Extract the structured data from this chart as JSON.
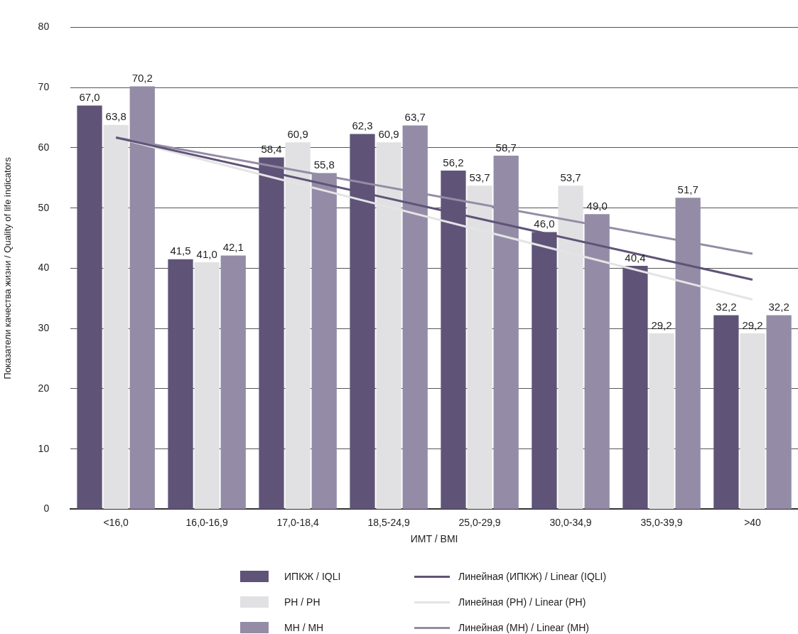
{
  "chart_data": {
    "type": "bar",
    "xlabel": "ИМТ / BMI",
    "ylabel": "Показатели качества жизни / Quality of life indicators",
    "categories": [
      "<16,0",
      "16,0-16,9",
      "17,0-18,4",
      "18,5-24,9",
      "25,0-29,9",
      "30,0-34,9",
      "35,0-39,9",
      ">40"
    ],
    "series": [
      {
        "name": "ИПКЖ / IQLI",
        "color": "#5f5477",
        "values": [
          67.0,
          41.5,
          58.4,
          62.3,
          56.2,
          46.0,
          40.4,
          32.2
        ],
        "value_labels": [
          "67,0",
          "41,5",
          "58,4",
          "62,3",
          "56,2",
          "46,0",
          "40,4",
          "32,2"
        ]
      },
      {
        "name": "PH / PH",
        "color": "#e1e1e3",
        "values": [
          63.8,
          41.0,
          60.9,
          60.9,
          53.7,
          53.7,
          29.2,
          29.2
        ],
        "value_labels": [
          "63,8",
          "41,0",
          "60,9",
          "60,9",
          "53,7",
          "53,7",
          "29,2",
          "29,2"
        ]
      },
      {
        "name": "MH / MH",
        "color": "#948ca6",
        "values": [
          70.2,
          42.1,
          55.8,
          63.7,
          58.7,
          49.0,
          51.7,
          32.2
        ],
        "value_labels": [
          "70,2",
          "42,1",
          "55,8",
          "63,7",
          "58,7",
          "49,0",
          "51,7",
          "32,2"
        ]
      },
      {
        "name": "Линейная (ИПКЖ) / Linear (IQLI)",
        "type": "line",
        "color": "#5f5477",
        "x": [
          "<16,0",
          ">40"
        ],
        "values": [
          61.7,
          38.1
        ]
      },
      {
        "name": "Линейная (PH) / Linear (PH)",
        "type": "line",
        "color": "#e4e4e6",
        "x": [
          "<16,0",
          ">40"
        ],
        "values": [
          61.7,
          34.8
        ]
      },
      {
        "name": "Линейная (MH) / Linear (MH)",
        "type": "line",
        "color": "#948ca6",
        "x": [
          "<16,0",
          ">40"
        ],
        "values": [
          61.7,
          42.4
        ]
      }
    ],
    "ylim": [
      0,
      80
    ],
    "yticks": [
      0,
      10,
      20,
      30,
      40,
      50,
      60,
      70,
      80
    ],
    "grid": "y",
    "legend": "bottom",
    "marker": "none"
  }
}
